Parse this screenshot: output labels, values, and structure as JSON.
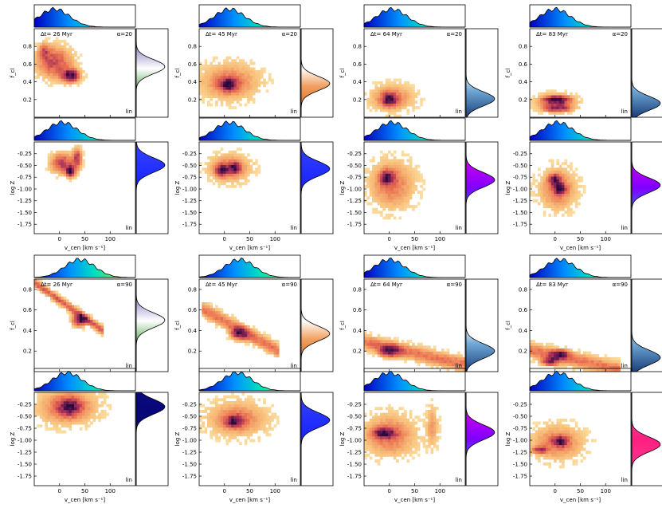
{
  "figure": {
    "row_label_top": "f",
    "rows_config": [
      {
        "alpha_label": "α=20",
        "alpha": 20
      },
      {
        "alpha_label": "α=90",
        "alpha": 90
      }
    ],
    "scale_label": "lin"
  },
  "chart_data": [
    {
      "type": "heatmap",
      "alpha_label": "α=20",
      "panel": "f_cl",
      "column": 0,
      "dt_label": "Δt= 26 Myr",
      "xlim": [
        -50,
        150
      ],
      "xticks": [
        0,
        50,
        100
      ],
      "xlabel": "v_cen [km s⁻¹]",
      "ylim": [
        0.0,
        1.0
      ],
      "yticks": [
        0.2,
        0.4,
        0.6,
        0.8
      ],
      "ylabel": "f_cl",
      "blobs": [
        [
          -10,
          0.62,
          24,
          0.12,
          0.6
        ],
        [
          22,
          0.47,
          12,
          0.05,
          1.0
        ],
        [
          -30,
          0.75,
          8,
          0.06,
          0.4
        ]
      ],
      "hist_colormap": "winter",
      "right_hist_colormap": "PRGn"
    },
    {
      "type": "heatmap",
      "alpha_label": "α=20",
      "panel": "f_cl",
      "column": 1,
      "dt_label": "Δt= 45 Myr",
      "xlim": [
        -50,
        150
      ],
      "xticks": [
        0,
        50,
        100
      ],
      "xlabel": "v_cen [km s⁻¹]",
      "ylim": [
        0.0,
        1.0
      ],
      "yticks": [
        0.2,
        0.4,
        0.6,
        0.8
      ],
      "ylabel": "f_cl",
      "blobs": [
        [
          10,
          0.4,
          40,
          0.14,
          0.6
        ],
        [
          8,
          0.37,
          12,
          0.05,
          1.0
        ]
      ],
      "hist_colormap": "winter",
      "right_hist_colormap": "PuOr"
    },
    {
      "type": "heatmap",
      "alpha_label": "α=20",
      "panel": "f_cl",
      "column": 2,
      "dt_label": "Δt= 64 Myr",
      "xlim": [
        -50,
        150
      ],
      "xticks": [
        0,
        50,
        100
      ],
      "xlabel": "v_cen [km s⁻¹]",
      "ylim": [
        0.0,
        1.0
      ],
      "yticks": [
        0.2,
        0.4,
        0.6,
        0.8
      ],
      "ylabel": "f_cl",
      "blobs": [
        [
          5,
          0.22,
          30,
          0.1,
          0.6
        ],
        [
          0,
          0.2,
          10,
          0.05,
          1.0
        ]
      ],
      "hist_colormap": "winter",
      "right_hist_colormap": "RdBu"
    },
    {
      "type": "heatmap",
      "alpha_label": "α=20",
      "panel": "f_cl",
      "column": 3,
      "dt_label": "Δt= 83 Myr",
      "xlim": [
        -50,
        150
      ],
      "xticks": [
        0,
        50,
        100
      ],
      "xlabel": "v_cen [km s⁻¹]",
      "ylim": [
        0.0,
        1.0
      ],
      "yticks": [
        0.2,
        0.4,
        0.6,
        0.8
      ],
      "ylabel": "f_cl",
      "blobs": [
        [
          0,
          0.18,
          25,
          0.06,
          0.6
        ],
        [
          5,
          0.1,
          20,
          0.03,
          0.9
        ],
        [
          5,
          0.2,
          18,
          0.03,
          0.9
        ]
      ],
      "hist_colormap": "winter",
      "right_hist_colormap": "RdBu"
    },
    {
      "type": "heatmap",
      "alpha_label": "α=20",
      "panel": "logZ",
      "column": 0,
      "xlim": [
        -50,
        150
      ],
      "xticks": [
        0,
        50,
        100
      ],
      "xlabel": "v_cen [km s⁻¹]",
      "ylim": [
        -1.95,
        0.0
      ],
      "yticks": [
        -0.25,
        -0.5,
        -0.75,
        -1.0,
        -1.25,
        -1.5,
        -1.75
      ],
      "ylabel": "log Z",
      "blobs": [
        [
          5,
          -0.45,
          15,
          0.15,
          0.7
        ],
        [
          22,
          -0.62,
          6,
          0.08,
          1.0
        ],
        [
          35,
          -0.35,
          6,
          0.15,
          0.7
        ]
      ],
      "hist_colormap": "winter",
      "right_hist_colormap": "blue"
    },
    {
      "type": "heatmap",
      "alpha_label": "α=20",
      "panel": "logZ",
      "column": 1,
      "xlim": [
        -50,
        150
      ],
      "xticks": [
        0,
        50,
        100
      ],
      "xlabel": "v_cen [km s⁻¹]",
      "ylim": [
        -1.95,
        0.0
      ],
      "yticks": [
        -0.25,
        -0.5,
        -0.75,
        -1.0,
        -1.25,
        -1.5,
        -1.75
      ],
      "ylabel": "log Z",
      "blobs": [
        [
          10,
          -0.55,
          28,
          0.2,
          0.6
        ],
        [
          -5,
          -0.6,
          8,
          0.08,
          1.0
        ],
        [
          20,
          -0.55,
          8,
          0.08,
          0.9
        ]
      ],
      "hist_colormap": "winter",
      "right_hist_colormap": "blue"
    },
    {
      "type": "heatmap",
      "alpha_label": "α=20",
      "panel": "logZ",
      "column": 2,
      "xlim": [
        -50,
        150
      ],
      "xticks": [
        0,
        50,
        100
      ],
      "xlabel": "v_cen [km s⁻¹]",
      "ylim": [
        -1.95,
        0.0
      ],
      "yticks": [
        -0.25,
        -0.5,
        -0.75,
        -1.0,
        -1.25,
        -1.5,
        -1.75
      ],
      "ylabel": "log Z",
      "blobs": [
        [
          5,
          -0.9,
          30,
          0.35,
          0.6
        ],
        [
          -5,
          -0.75,
          10,
          0.1,
          1.0
        ]
      ],
      "hist_colormap": "winter",
      "right_hist_colormap": "cool"
    },
    {
      "type": "heatmap",
      "alpha_label": "α=20",
      "panel": "logZ",
      "column": 3,
      "xlim": [
        -50,
        150
      ],
      "xticks": [
        0,
        50,
        100
      ],
      "xlabel": "v_cen [km s⁻¹]",
      "ylim": [
        -1.95,
        0.0
      ],
      "yticks": [
        -0.25,
        -0.5,
        -0.75,
        -1.0,
        -1.25,
        -1.5,
        -1.75
      ],
      "ylabel": "log Z",
      "blobs": [
        [
          5,
          -1.0,
          25,
          0.3,
          0.6
        ],
        [
          0,
          -0.8,
          8,
          0.08,
          1.0
        ],
        [
          10,
          -1.0,
          8,
          0.08,
          0.9
        ]
      ],
      "hist_colormap": "winter",
      "right_hist_colormap": "cool"
    },
    {
      "type": "heatmap",
      "alpha_label": "α=90",
      "panel": "f_cl",
      "column": 0,
      "dt_label": "Δt= 26 Myr",
      "xlim": [
        -50,
        150
      ],
      "xticks": [
        0,
        50,
        100
      ],
      "xlabel": "v_cen [km s⁻¹]",
      "ylim": [
        0.0,
        0.9
      ],
      "yticks": [
        0.2,
        0.4,
        0.6,
        0.8
      ],
      "ylabel": "f_cl",
      "line": {
        "x0": -45,
        "y0": 0.85,
        "x1": 80,
        "y1": 0.42,
        "width": 0.03
      },
      "blobs": [
        [
          40,
          0.5,
          10,
          0.04,
          1.0
        ]
      ],
      "hist_colormap": "winter",
      "right_hist_colormap": "PRGn"
    },
    {
      "type": "heatmap",
      "alpha_label": "α=90",
      "panel": "f_cl",
      "column": 1,
      "dt_label": "Δt= 45 Myr",
      "xlim": [
        -50,
        150
      ],
      "xticks": [
        0,
        50,
        100
      ],
      "xlabel": "v_cen [km s⁻¹]",
      "ylim": [
        0.0,
        0.9
      ],
      "yticks": [
        0.2,
        0.4,
        0.6,
        0.8
      ],
      "ylabel": "f_cl",
      "line": {
        "x0": -40,
        "y0": 0.6,
        "x1": 100,
        "y1": 0.22,
        "width": 0.05
      },
      "blobs": [
        [
          30,
          0.37,
          12,
          0.04,
          1.0
        ]
      ],
      "hist_colormap": "winter",
      "right_hist_colormap": "PuOr"
    },
    {
      "type": "heatmap",
      "alpha_label": "α=90",
      "panel": "f_cl",
      "column": 2,
      "dt_label": "Δt= 64 Myr",
      "xlim": [
        -50,
        150
      ],
      "xticks": [
        0,
        50,
        100
      ],
      "xlabel": "v_cen [km s⁻¹]",
      "ylim": [
        0.0,
        0.9
      ],
      "yticks": [
        0.2,
        0.4,
        0.6,
        0.8
      ],
      "ylabel": "f_cl",
      "line": {
        "x0": -40,
        "y0": 0.28,
        "x1": 140,
        "y1": 0.08,
        "width": 0.05
      },
      "blobs": [
        [
          0,
          0.2,
          14,
          0.04,
          1.0
        ]
      ],
      "hist_colormap": "winter",
      "right_hist_colormap": "RdBu"
    },
    {
      "type": "heatmap",
      "alpha_label": "α=90",
      "panel": "f_cl",
      "column": 3,
      "dt_label": "Δt= 83 Myr",
      "xlim": [
        -50,
        150
      ],
      "xticks": [
        0,
        50,
        100
      ],
      "xlabel": "v_cen [km s⁻¹]",
      "ylim": [
        0.0,
        0.9
      ],
      "yticks": [
        0.2,
        0.4,
        0.6,
        0.8
      ],
      "ylabel": "f_cl",
      "line": {
        "x0": -40,
        "y0": 0.2,
        "x1": 120,
        "y1": 0.03,
        "width": 0.05
      },
      "blobs": [
        [
          10,
          0.17,
          12,
          0.03,
          1.0
        ],
        [
          -10,
          0.1,
          12,
          0.03,
          0.9
        ]
      ],
      "hist_colormap": "winter",
      "right_hist_colormap": "RdBu"
    },
    {
      "type": "heatmap",
      "alpha_label": "α=90",
      "panel": "logZ",
      "column": 0,
      "xlim": [
        -50,
        150
      ],
      "xticks": [
        0,
        50,
        100
      ],
      "xlabel": "v_cen [km s⁻¹]",
      "ylim": [
        -1.95,
        0.0
      ],
      "yticks": [
        -0.25,
        -0.5,
        -0.75,
        -1.0,
        -1.25,
        -1.5,
        -1.75
      ],
      "ylabel": "log Z",
      "blobs": [
        [
          15,
          -0.3,
          40,
          0.25,
          0.7
        ],
        [
          20,
          -0.3,
          15,
          0.12,
          1.0
        ]
      ],
      "hist_colormap": "winter",
      "right_hist_colormap": "navy"
    },
    {
      "type": "heatmap",
      "alpha_label": "α=90",
      "panel": "logZ",
      "column": 1,
      "xlim": [
        -50,
        150
      ],
      "xticks": [
        0,
        50,
        100
      ],
      "xlabel": "v_cen [km s⁻¹]",
      "ylim": [
        -1.95,
        0.0
      ],
      "yticks": [
        -0.25,
        -0.5,
        -0.75,
        -1.0,
        -1.25,
        -1.5,
        -1.75
      ],
      "ylabel": "log Z",
      "blobs": [
        [
          25,
          -0.55,
          40,
          0.25,
          0.6
        ],
        [
          20,
          -0.6,
          12,
          0.08,
          1.0
        ]
      ],
      "hist_colormap": "winter",
      "right_hist_colormap": "blue"
    },
    {
      "type": "heatmap",
      "alpha_label": "α=90",
      "panel": "logZ",
      "column": 2,
      "xlim": [
        -50,
        150
      ],
      "xticks": [
        0,
        50,
        100
      ],
      "xlabel": "v_cen [km s⁻¹]",
      "ylim": [
        -1.95,
        0.0
      ],
      "yticks": [
        -0.25,
        -0.5,
        -0.75,
        -1.0,
        -1.25,
        -1.5,
        -1.75
      ],
      "ylabel": "log Z",
      "blobs": [
        [
          0,
          -0.9,
          35,
          0.3,
          0.6
        ],
        [
          -10,
          -0.85,
          15,
          0.07,
          1.0
        ],
        [
          85,
          -0.7,
          8,
          0.3,
          0.4
        ]
      ],
      "hist_colormap": "winter",
      "right_hist_colormap": "cool"
    },
    {
      "type": "heatmap",
      "alpha_label": "α=90",
      "panel": "logZ",
      "column": 3,
      "xlim": [
        -50,
        150
      ],
      "xticks": [
        0,
        50,
        100
      ],
      "xlabel": "v_cen [km s⁻¹]",
      "ylim": [
        -1.95,
        0.0
      ],
      "yticks": [
        -0.25,
        -0.5,
        -0.75,
        -1.0,
        -1.25,
        -1.5,
        -1.75
      ],
      "ylabel": "log Z",
      "blobs": [
        [
          5,
          -1.05,
          35,
          0.25,
          0.6
        ],
        [
          10,
          -1.02,
          10,
          0.07,
          1.0
        ],
        [
          -30,
          -1.2,
          10,
          0.05,
          0.8
        ]
      ],
      "hist_colormap": "winter",
      "right_hist_colormap": "spring"
    }
  ]
}
